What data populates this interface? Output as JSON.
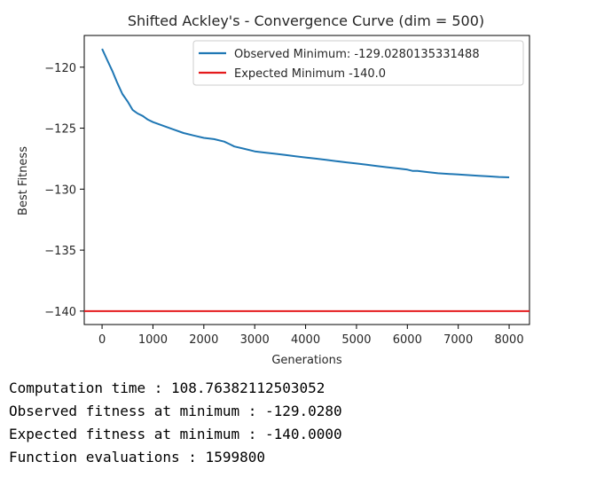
{
  "chart_data": {
    "type": "line",
    "title": "Shifted Ackley's - Convergence Curve (dim = 500)",
    "xlabel": "Generations",
    "ylabel": "Best Fitness",
    "xlim": [
      -350,
      8400
    ],
    "ylim": [
      -141.1,
      -117.4
    ],
    "xticks": [
      0,
      1000,
      2000,
      3000,
      4000,
      5000,
      6000,
      7000,
      8000
    ],
    "yticks": [
      -120,
      -125,
      -130,
      -135,
      -140
    ],
    "xtick_labels": [
      "0",
      "1000",
      "2000",
      "3000",
      "4000",
      "5000",
      "6000",
      "7000",
      "8000"
    ],
    "ytick_labels": [
      "−120",
      "−125",
      "−130",
      "−135",
      "−140"
    ],
    "grid": false,
    "legend_position": "upper right",
    "series": [
      {
        "name": "Observed Minimum: -129.0280135331488",
        "color": "#1f77b4",
        "x": [
          0,
          100,
          200,
          300,
          400,
          500,
          600,
          700,
          800,
          900,
          1000,
          1200,
          1400,
          1600,
          1800,
          2000,
          2200,
          2400,
          2500,
          2600,
          2800,
          3000,
          3200,
          3400,
          3600,
          3800,
          4000,
          4200,
          4400,
          4600,
          4800,
          5000,
          5200,
          5400,
          5600,
          5800,
          6000,
          6100,
          6200,
          6400,
          6600,
          6800,
          7000,
          7200,
          7400,
          7600,
          7800,
          8000
        ],
        "y": [
          -118.5,
          -119.4,
          -120.3,
          -121.3,
          -122.2,
          -122.8,
          -123.5,
          -123.8,
          -124.0,
          -124.3,
          -124.5,
          -124.8,
          -125.1,
          -125.4,
          -125.6,
          -125.8,
          -125.9,
          -126.1,
          -126.3,
          -126.5,
          -126.7,
          -126.9,
          -127.0,
          -127.1,
          -127.2,
          -127.3,
          -127.4,
          -127.5,
          -127.6,
          -127.7,
          -127.8,
          -127.9,
          -128.0,
          -128.1,
          -128.2,
          -128.3,
          -128.4,
          -128.5,
          -128.5,
          -128.6,
          -128.7,
          -128.75,
          -128.8,
          -128.85,
          -128.9,
          -128.95,
          -129.0,
          -129.03
        ]
      },
      {
        "name": "Expected Minimum -140.0",
        "color": "#e41a1c",
        "x": [
          -350,
          8400
        ],
        "y": [
          -140.0,
          -140.0
        ]
      }
    ]
  },
  "output": {
    "lines": [
      "Computation time : 108.76382112503052",
      "Observed fitness at minimum : -129.0280",
      "Expected fitness at minimum : -140.0000",
      "Function evaluations : 1599800"
    ]
  }
}
